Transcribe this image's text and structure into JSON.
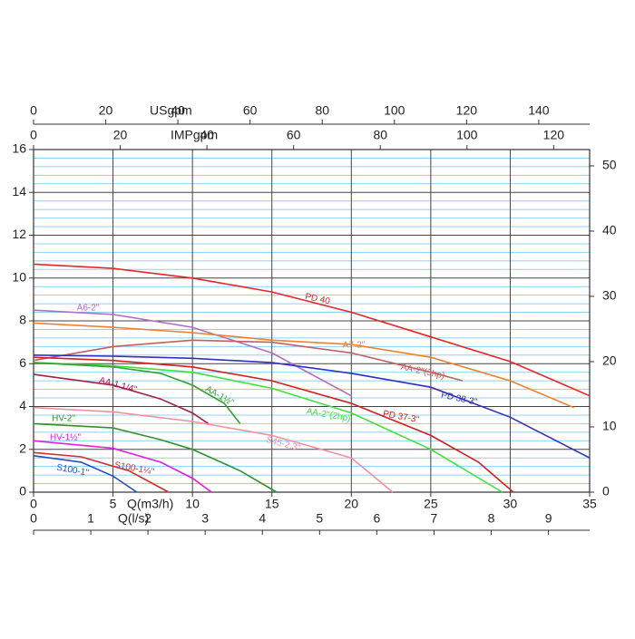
{
  "chart_data": {
    "type": "line",
    "xlabel": "Q(m3/h)",
    "xlim": [
      0,
      35
    ],
    "xticks": [
      0,
      5,
      10,
      15,
      20,
      25,
      30,
      35
    ],
    "ylim": [
      0,
      16
    ],
    "yticks": [
      0,
      2,
      4,
      6,
      8,
      10,
      12,
      14,
      16
    ],
    "y2lim": [
      0,
      52.5
    ],
    "y2ticks": [
      0,
      10,
      20,
      30,
      40,
      50
    ],
    "grid": true,
    "extra_x_axes": [
      {
        "label": "Q(l/s)",
        "position": "bottom",
        "xlim": [
          0,
          9.72
        ],
        "xticks": [
          0,
          1,
          2,
          3,
          4,
          5,
          6,
          7,
          8,
          9
        ]
      },
      {
        "label": "USgpm",
        "position": "top",
        "xlim": [
          0,
          154.1
        ],
        "xticks": [
          0,
          20,
          40,
          60,
          80,
          100,
          120,
          140
        ]
      },
      {
        "label": "IMPgpm",
        "position": "top",
        "xlim": [
          0,
          128.3
        ],
        "xticks": [
          0,
          20,
          40,
          60,
          80,
          100,
          120
        ]
      }
    ],
    "series": [
      {
        "name": "PD 40",
        "color": "#e8262a",
        "x": [
          0,
          5,
          10,
          15,
          20,
          25,
          30,
          35
        ],
        "values": [
          10.65,
          10.45,
          10.0,
          9.35,
          8.4,
          7.25,
          6.1,
          4.5
        ]
      },
      {
        "name": "A6-2\"",
        "color": "#b070c0",
        "x": [
          0,
          5,
          10,
          15,
          20
        ],
        "values": [
          8.5,
          8.3,
          7.7,
          6.5,
          4.5
        ]
      },
      {
        "name": "A7-2\"",
        "color": "#f08030",
        "x": [
          0,
          5,
          10,
          15,
          20,
          25,
          30,
          34
        ],
        "values": [
          7.9,
          7.7,
          7.45,
          7.1,
          6.9,
          6.3,
          5.2,
          3.95
        ]
      },
      {
        "name": "AA-2\"(3hp)",
        "color": "#c06060",
        "x": [
          0,
          5,
          10,
          15,
          20,
          25,
          27
        ],
        "values": [
          6.15,
          6.8,
          7.1,
          7.0,
          6.5,
          5.6,
          5.2
        ]
      },
      {
        "name": "PD 38-3\"",
        "color": "#3030c0",
        "x": [
          0,
          5,
          10,
          15,
          20,
          25,
          30,
          35
        ],
        "values": [
          6.4,
          6.35,
          6.25,
          6.05,
          5.55,
          4.9,
          3.5,
          1.6
        ]
      },
      {
        "name": "PD 37-3\"",
        "color": "#d02020",
        "x": [
          0,
          5,
          10,
          15,
          20,
          25,
          28,
          30.2
        ],
        "values": [
          6.3,
          6.15,
          5.85,
          5.2,
          4.15,
          2.65,
          1.4,
          0
        ]
      },
      {
        "name": "AA-2\"(2hp)",
        "color": "#40e040",
        "x": [
          0,
          5,
          10,
          15,
          20,
          25,
          29.5
        ],
        "values": [
          6.05,
          5.9,
          5.6,
          4.85,
          3.7,
          2.0,
          0
        ]
      },
      {
        "name": "AA-1½\"",
        "color": "#30a030",
        "x": [
          0,
          5,
          8,
          10,
          12,
          13
        ],
        "values": [
          6.05,
          5.85,
          5.55,
          5.0,
          4.15,
          3.2
        ]
      },
      {
        "name": "AA-1.1/4\"",
        "color": "#a0204a",
        "x": [
          0,
          5,
          8,
          10,
          11
        ],
        "values": [
          5.5,
          5.0,
          4.35,
          3.7,
          3.2
        ]
      },
      {
        "name": "S45-2.3\"",
        "color": "#f090a0",
        "x": [
          0,
          5,
          10,
          15,
          20,
          22.6
        ],
        "values": [
          3.95,
          3.75,
          3.3,
          2.65,
          1.6,
          0
        ]
      },
      {
        "name": "HV-2\"",
        "color": "#309030",
        "x": [
          0,
          5,
          8,
          10,
          13,
          15.3
        ],
        "values": [
          3.2,
          3.0,
          2.45,
          2.0,
          1.0,
          0
        ]
      },
      {
        "name": "HV-1½\"",
        "color": "#e020e0",
        "x": [
          0,
          5,
          8,
          10,
          11.2
        ],
        "values": [
          2.4,
          2.05,
          1.4,
          0.65,
          0
        ]
      },
      {
        "name": "S100-1¼\"",
        "color": "#d03030",
        "x": [
          0,
          3,
          6,
          8.5
        ],
        "values": [
          1.85,
          1.65,
          1.0,
          0
        ]
      },
      {
        "name": "S100-1\"",
        "color": "#2050c0",
        "x": [
          0,
          3,
          5,
          6.5
        ],
        "values": [
          1.7,
          1.4,
          0.75,
          0
        ]
      }
    ]
  }
}
